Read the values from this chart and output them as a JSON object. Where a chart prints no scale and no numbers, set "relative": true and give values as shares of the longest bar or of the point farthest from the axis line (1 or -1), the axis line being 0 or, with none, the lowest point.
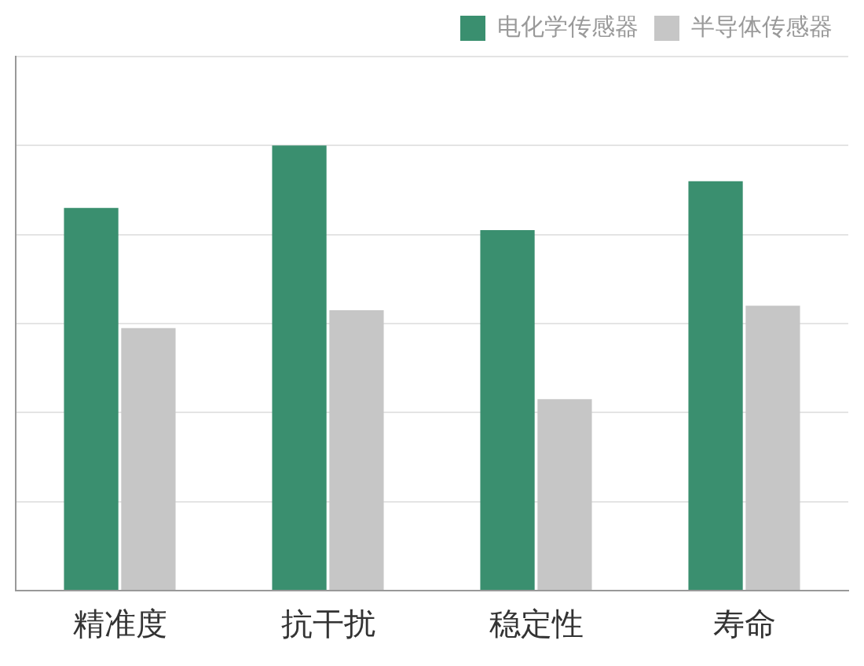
{
  "chart_data": {
    "type": "bar",
    "relative": true,
    "categories": [
      "精准度",
      "抗干扰",
      "稳定性",
      "寿命"
    ],
    "series": [
      {
        "name": "电化学传感器",
        "color": "#3a8f6f",
        "values": [
          0.86,
          1,
          0.81,
          0.92
        ]
      },
      {
        "name": "半导体传感器",
        "color": "#c6c6c6",
        "values": [
          0.59,
          0.63,
          0.43,
          0.64
        ]
      }
    ],
    "grid": "y",
    "legend": "top right"
  }
}
